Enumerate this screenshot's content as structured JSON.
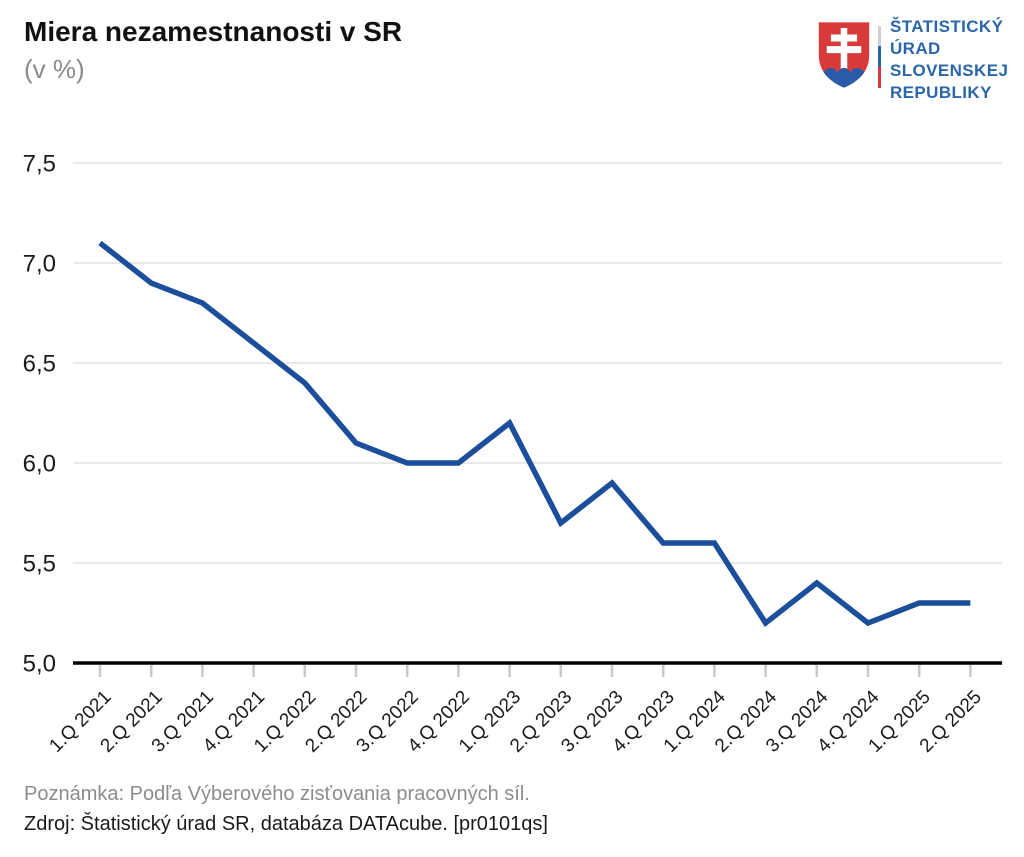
{
  "header": {
    "title": "Miera nezamestnanosti v SR",
    "subtitle": "(v %)"
  },
  "logo": {
    "line1": "ŠTATISTICKÝ",
    "line2": "ÚRAD",
    "line3": "SLOVENSKEJ",
    "line4": "REPUBLIKY"
  },
  "colors": {
    "line": "#1b4e9b",
    "grid": "#e2e2e2",
    "axis": "#000000",
    "tick": "#c8c8c8",
    "label": "#1a1a1a",
    "logo_blue": "#2a66a9",
    "shield_red": "#d83a3c",
    "hill_blue": "#2a5ba8"
  },
  "chart_data": {
    "type": "line",
    "title": "Miera nezamestnanosti v SR",
    "subtitle": "(v %)",
    "categories": [
      "1.Q 2021",
      "2.Q 2021",
      "3.Q 2021",
      "4.Q 2021",
      "1.Q 2022",
      "2.Q 2022",
      "3.Q 2022",
      "4.Q 2022",
      "1.Q 2023",
      "2.Q 2023",
      "3.Q 2023",
      "4.Q 2023",
      "1.Q 2024",
      "2.Q 2024",
      "3.Q 2024",
      "4.Q 2024",
      "1.Q 2025",
      "2.Q 2025"
    ],
    "values": [
      7.1,
      6.9,
      6.8,
      6.6,
      6.4,
      6.1,
      6.0,
      6.0,
      6.2,
      5.7,
      5.9,
      5.6,
      5.6,
      5.2,
      5.4,
      5.2,
      5.3,
      5.3
    ],
    "ylim": [
      5.0,
      7.5
    ],
    "yticks": [
      7.5,
      7.0,
      6.5,
      6.0,
      5.5,
      5.0
    ],
    "ytick_labels": [
      "7,5",
      "7,0",
      "6,5",
      "6,0",
      "5,5",
      "5,0"
    ],
    "xlabel": "",
    "ylabel": "",
    "grid": true,
    "legend": false,
    "line_color": "#1b4e9b"
  },
  "footer": {
    "note": "Poznámka: Podľa Výberového zisťovania pracovných síl.",
    "source": "Zdroj: Štatistický úrad SR, databáza DATAcube. [pr0101qs]"
  }
}
